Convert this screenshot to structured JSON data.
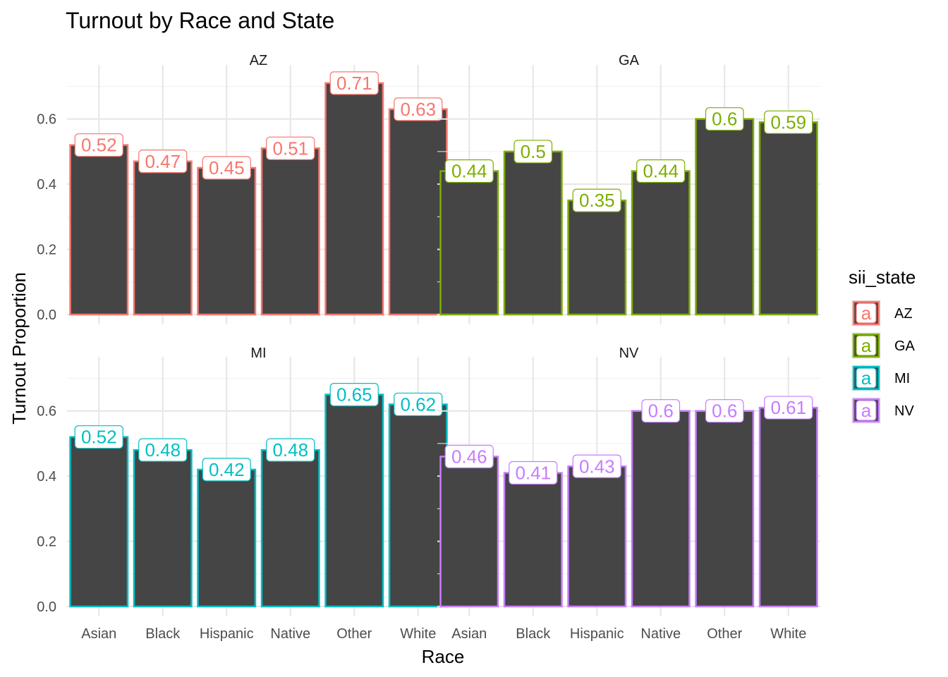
{
  "chart_data": {
    "type": "bar",
    "title": "Turnout by Race and State",
    "xlabel": "Race",
    "ylabel": "Turnout Proportion",
    "ylim": [
      0,
      0.74
    ],
    "y_ticks": [
      "0.0",
      "0.2",
      "0.4",
      "0.6"
    ],
    "y_tick_values": [
      0,
      0.2,
      0.4,
      0.6
    ],
    "grid": true,
    "facet_layout": "2x2",
    "categories": [
      "Asian",
      "Black",
      "Hispanic",
      "Native",
      "Other",
      "White"
    ],
    "bar_fill": "#454545",
    "panels": [
      {
        "name": "AZ",
        "color": "#F8766D",
        "values": [
          0.52,
          0.47,
          0.45,
          0.51,
          0.71,
          0.63
        ],
        "labels": [
          "0.52",
          "0.47",
          "0.45",
          "0.51",
          "0.71",
          "0.63"
        ]
      },
      {
        "name": "GA",
        "color": "#7CAE00",
        "values": [
          0.44,
          0.5,
          0.35,
          0.44,
          0.6,
          0.59
        ],
        "labels": [
          "0.44",
          "0.5",
          "0.35",
          "0.44",
          "0.6",
          "0.59"
        ]
      },
      {
        "name": "MI",
        "color": "#00BFC4",
        "values": [
          0.52,
          0.48,
          0.42,
          0.48,
          0.65,
          0.62
        ],
        "labels": [
          "0.52",
          "0.48",
          "0.42",
          "0.48",
          "0.65",
          "0.62"
        ]
      },
      {
        "name": "NV",
        "color": "#C77CFF",
        "values": [
          0.46,
          0.41,
          0.43,
          0.6,
          0.6,
          0.61
        ],
        "labels": [
          "0.46",
          "0.41",
          "0.43",
          "0.6",
          "0.6",
          "0.61"
        ]
      }
    ],
    "legend": {
      "title": "sii_state",
      "position": "right",
      "key_glyph": "a",
      "items": [
        {
          "label": "AZ",
          "color": "#F8766D"
        },
        {
          "label": "GA",
          "color": "#7CAE00"
        },
        {
          "label": "MI",
          "color": "#00BFC4"
        },
        {
          "label": "NV",
          "color": "#C77CFF"
        }
      ]
    }
  }
}
